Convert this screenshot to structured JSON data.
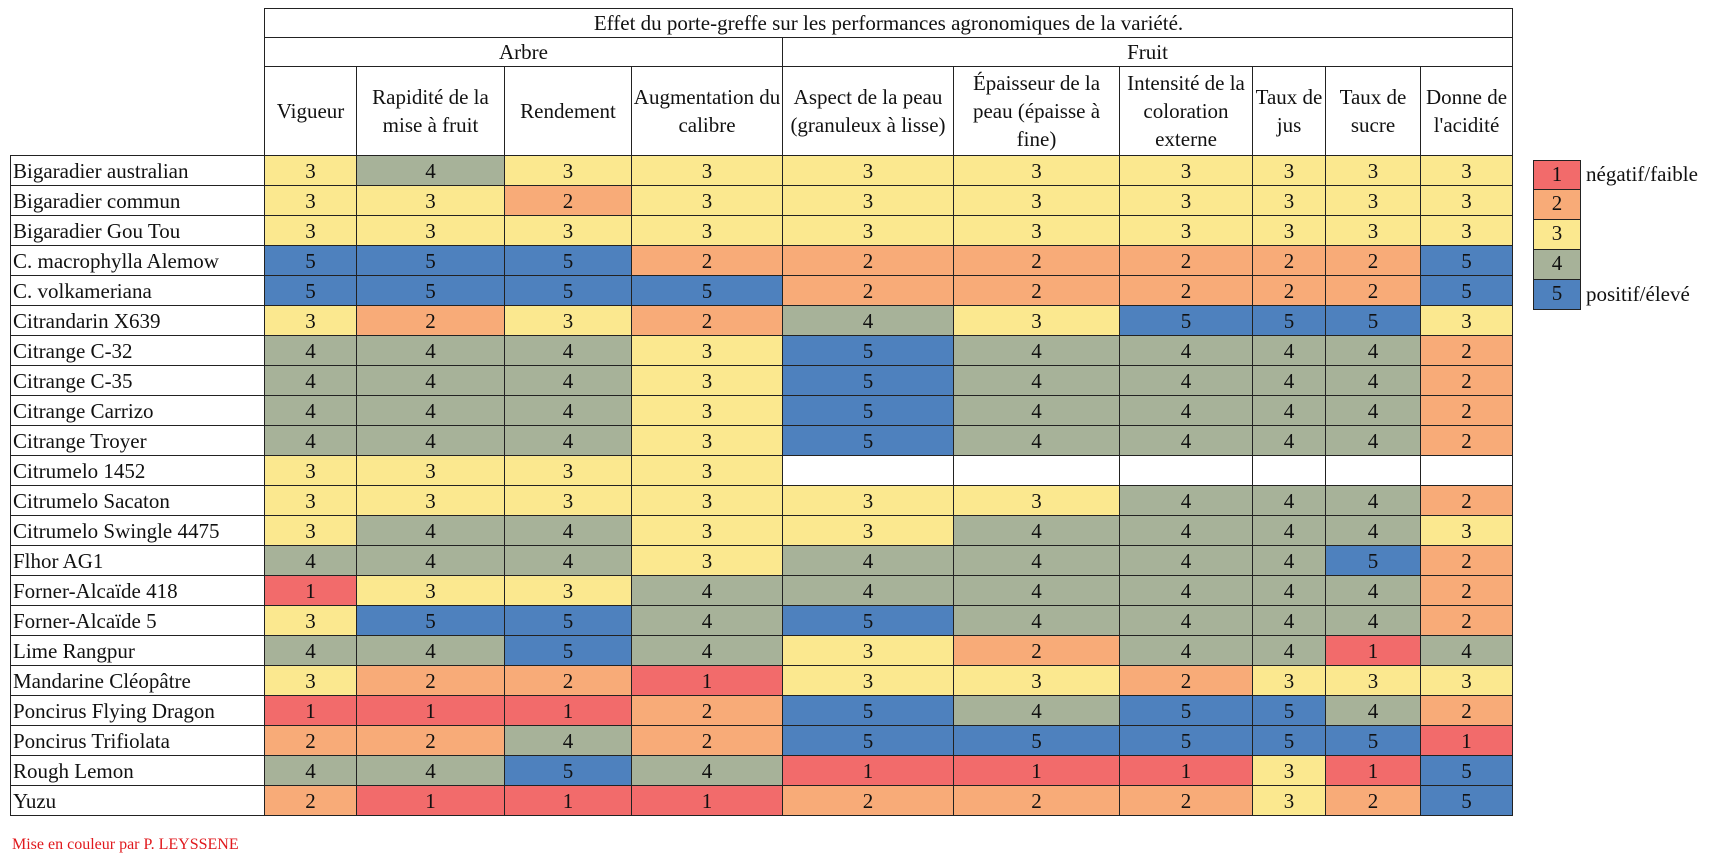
{
  "title": "Effet du porte-greffe sur les performances agronomiques de la variété.",
  "groups": {
    "arbre": "Arbre",
    "fruit": "Fruit"
  },
  "columns": [
    "Vigueur",
    "Rapidité de la mise à fruit",
    "Rendement",
    "Augmentation du calibre",
    "Aspect de la peau (granuleux à lisse)",
    "Épaisseur de la peau (épaisse à fine)",
    "Intensité de la coloration externe",
    "Taux de jus",
    "Taux de sucre",
    "Donne de l'acidité"
  ],
  "rows": [
    {
      "name": "Bigaradier australian",
      "values": [
        "3",
        "4",
        "3",
        "3",
        "3",
        "3",
        "3",
        "3",
        "3",
        "3"
      ]
    },
    {
      "name": "Bigaradier commun",
      "values": [
        "3",
        "3",
        "2",
        "3",
        "3",
        "3",
        "3",
        "3",
        "3",
        "3"
      ]
    },
    {
      "name": "Bigaradier Gou Tou",
      "values": [
        "3",
        "3",
        "3",
        "3",
        "3",
        "3",
        "3",
        "3",
        "3",
        "3"
      ]
    },
    {
      "name": "C. macrophylla Alemow",
      "values": [
        "5",
        "5",
        "5",
        "2",
        "2",
        "2",
        "2",
        "2",
        "2",
        "5"
      ]
    },
    {
      "name": "C. volkameriana",
      "values": [
        "5",
        "5",
        "5",
        "5",
        "2",
        "2",
        "2",
        "2",
        "2",
        "5"
      ]
    },
    {
      "name": "Citrandarin X639",
      "values": [
        "3",
        "2",
        "3",
        "2",
        "4",
        "3",
        "5",
        "5",
        "5",
        "3"
      ]
    },
    {
      "name": "Citrange C-32",
      "values": [
        "4",
        "4",
        "4",
        "3",
        "5",
        "4",
        "4",
        "4",
        "4",
        "2"
      ]
    },
    {
      "name": "Citrange C-35",
      "values": [
        "4",
        "4",
        "4",
        "3",
        "5",
        "4",
        "4",
        "4",
        "4",
        "2"
      ]
    },
    {
      "name": "Citrange Carrizo",
      "values": [
        "4",
        "4",
        "4",
        "3",
        "5",
        "4",
        "4",
        "4",
        "4",
        "2"
      ]
    },
    {
      "name": "Citrange Troyer",
      "values": [
        "4",
        "4",
        "4",
        "3",
        "5",
        "4",
        "4",
        "4",
        "4",
        "2"
      ]
    },
    {
      "name": "Citrumelo 1452",
      "values": [
        "3",
        "3",
        "3",
        "3",
        "",
        "",
        "",
        "",
        "",
        ""
      ]
    },
    {
      "name": "Citrumelo Sacaton",
      "values": [
        "3",
        "3",
        "3",
        "3",
        "3",
        "3",
        "4",
        "4",
        "4",
        "2"
      ]
    },
    {
      "name": "Citrumelo Swingle 4475",
      "values": [
        "3",
        "4",
        "4",
        "3",
        "3",
        "4",
        "4",
        "4",
        "4",
        "3"
      ]
    },
    {
      "name": "Flhor AG1",
      "values": [
        "4",
        "4",
        "4",
        "3",
        "4",
        "4",
        "4",
        "4",
        "5",
        "2"
      ]
    },
    {
      "name": "Forner-Alcaïde 418",
      "values": [
        "1",
        "3",
        "3",
        "4",
        "4",
        "4",
        "4",
        "4",
        "4",
        "2"
      ]
    },
    {
      "name": "Forner-Alcaïde 5",
      "values": [
        "3",
        "5",
        "5",
        "4",
        "5",
        "4",
        "4",
        "4",
        "4",
        "2"
      ]
    },
    {
      "name": "Lime Rangpur",
      "values": [
        "4",
        "4",
        "5",
        "4",
        "3",
        "2",
        "4",
        "4",
        "1",
        "4"
      ]
    },
    {
      "name": "Mandarine Cléopâtre",
      "values": [
        "3",
        "2",
        "2",
        "1",
        "3",
        "3",
        "2",
        "3",
        "3",
        "3"
      ]
    },
    {
      "name": "Poncirus Flying Dragon",
      "values": [
        "1",
        "1",
        "1",
        "2",
        "5",
        "4",
        "5",
        "5",
        "4",
        "2"
      ]
    },
    {
      "name": "Poncirus Trifiolata",
      "values": [
        "2",
        "2",
        "4",
        "2",
        "5",
        "5",
        "5",
        "5",
        "5",
        "1"
      ]
    },
    {
      "name": "Rough Lemon",
      "values": [
        "4",
        "4",
        "5",
        "4",
        "1",
        "1",
        "1",
        "3",
        "1",
        "5"
      ]
    },
    {
      "name": "Yuzu",
      "values": [
        "2",
        "1",
        "1",
        "1",
        "2",
        "2",
        "2",
        "3",
        "2",
        "5"
      ]
    }
  ],
  "colors": {
    "1": "#f26b6b",
    "2": "#f8ab78",
    "3": "#fbe88f",
    "4": "#a7b299",
    "5": "#4e81be"
  },
  "legend": [
    {
      "value": "1",
      "label": "négatif/faible"
    },
    {
      "value": "2",
      "label": ""
    },
    {
      "value": "3",
      "label": ""
    },
    {
      "value": "4",
      "label": ""
    },
    {
      "value": "5",
      "label": "positif/élevé"
    }
  ],
  "credit": "Mise en couleur par P. LEYSSENE"
}
